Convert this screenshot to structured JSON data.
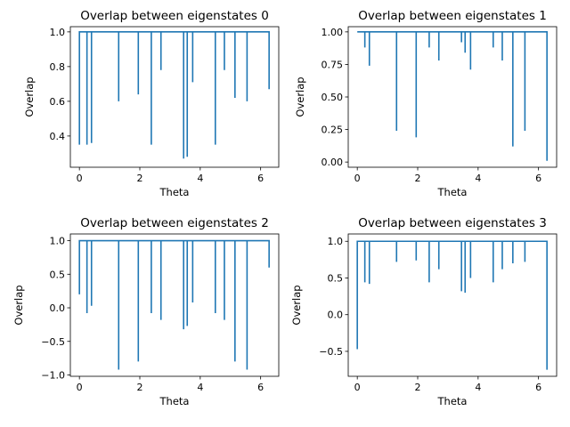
{
  "figure": {
    "background": "#ffffff",
    "line_color": "#1f77b4"
  },
  "chart_data": [
    {
      "type": "line",
      "title": "Overlap between eigenstates 0",
      "xlabel": "Theta",
      "ylabel": "Overlap",
      "xlim": [
        -0.3,
        6.6
      ],
      "ylim": [
        0.22,
        1.03
      ],
      "xticks": [
        0,
        2,
        4,
        6
      ],
      "yticks": [
        0.4,
        0.6,
        0.8,
        1.0
      ],
      "ytick_labels": [
        "0.4",
        "0.6",
        "0.8",
        "1.0"
      ],
      "grid": false,
      "series": [
        {
          "baseline": 1.0,
          "start": [
            0.0,
            0.35
          ],
          "end": [
            6.28,
            0.67
          ],
          "dips": [
            [
              0.25,
              0.35
            ],
            [
              0.4,
              0.36
            ],
            [
              1.3,
              0.6
            ],
            [
              1.95,
              0.64
            ],
            [
              2.38,
              0.35
            ],
            [
              2.7,
              0.78
            ],
            [
              3.45,
              0.27
            ],
            [
              3.57,
              0.28
            ],
            [
              3.75,
              0.71
            ],
            [
              4.5,
              0.35
            ],
            [
              4.8,
              0.78
            ],
            [
              5.15,
              0.62
            ],
            [
              5.55,
              0.6
            ]
          ]
        }
      ]
    },
    {
      "type": "line",
      "title": "Overlap between eigenstates 1",
      "xlabel": "Theta",
      "ylabel": "Overlap",
      "xlim": [
        -0.3,
        6.6
      ],
      "ylim": [
        -0.04,
        1.04
      ],
      "xticks": [
        0,
        2,
        4,
        6
      ],
      "yticks": [
        0.0,
        0.25,
        0.5,
        0.75,
        1.0
      ],
      "ytick_labels": [
        "0.00",
        "0.25",
        "0.50",
        "0.75",
        "1.00"
      ],
      "grid": false,
      "series": [
        {
          "baseline": 1.0,
          "start": [
            0.0,
            1.0
          ],
          "end": [
            6.28,
            0.01
          ],
          "dips": [
            [
              0.25,
              0.88
            ],
            [
              0.4,
              0.74
            ],
            [
              1.3,
              0.24
            ],
            [
              1.95,
              0.19
            ],
            [
              2.38,
              0.88
            ],
            [
              2.7,
              0.78
            ],
            [
              3.45,
              0.92
            ],
            [
              3.57,
              0.84
            ],
            [
              3.75,
              0.71
            ],
            [
              4.5,
              0.88
            ],
            [
              4.8,
              0.78
            ],
            [
              5.15,
              0.12
            ],
            [
              5.55,
              0.24
            ]
          ]
        }
      ]
    },
    {
      "type": "line",
      "title": "Overlap between eigenstates 2",
      "xlabel": "Theta",
      "ylabel": "Overlap",
      "xlim": [
        -0.3,
        6.6
      ],
      "ylim": [
        -1.02,
        1.1
      ],
      "xticks": [
        0,
        2,
        4,
        6
      ],
      "yticks": [
        -1.0,
        -0.5,
        0.0,
        0.5,
        1.0
      ],
      "ytick_labels": [
        "−1.0",
        "−0.5",
        "0.0",
        "0.5",
        "1.0"
      ],
      "grid": false,
      "series": [
        {
          "baseline": 1.0,
          "start": [
            0.0,
            0.2
          ],
          "end": [
            6.28,
            0.6
          ],
          "dips": [
            [
              0.25,
              -0.08
            ],
            [
              0.4,
              0.03
            ],
            [
              1.3,
              -0.92
            ],
            [
              1.95,
              -0.8
            ],
            [
              2.38,
              -0.08
            ],
            [
              2.7,
              -0.18
            ],
            [
              3.45,
              -0.32
            ],
            [
              3.57,
              -0.27
            ],
            [
              3.75,
              0.08
            ],
            [
              4.5,
              -0.08
            ],
            [
              4.8,
              -0.18
            ],
            [
              5.15,
              -0.8
            ],
            [
              5.55,
              -0.92
            ]
          ]
        }
      ]
    },
    {
      "type": "line",
      "title": "Overlap between eigenstates 3",
      "xlabel": "Theta",
      "ylabel": "Overlap",
      "xlim": [
        -0.3,
        6.6
      ],
      "ylim": [
        -0.84,
        1.1
      ],
      "xticks": [
        0,
        2,
        4,
        6
      ],
      "yticks": [
        -0.5,
        0.0,
        0.5,
        1.0
      ],
      "ytick_labels": [
        "−0.5",
        "0.0",
        "0.5",
        "1.0"
      ],
      "grid": false,
      "series": [
        {
          "baseline": 1.0,
          "start": [
            0.0,
            -0.47
          ],
          "end": [
            6.28,
            -0.75
          ],
          "dips": [
            [
              0.25,
              0.44
            ],
            [
              0.4,
              0.42
            ],
            [
              1.3,
              0.72
            ],
            [
              1.95,
              0.74
            ],
            [
              2.38,
              0.44
            ],
            [
              2.7,
              0.62
            ],
            [
              3.45,
              0.32
            ],
            [
              3.57,
              0.3
            ],
            [
              3.75,
              0.5
            ],
            [
              4.5,
              0.44
            ],
            [
              4.8,
              0.62
            ],
            [
              5.15,
              0.7
            ],
            [
              5.55,
              0.72
            ]
          ]
        }
      ]
    }
  ]
}
